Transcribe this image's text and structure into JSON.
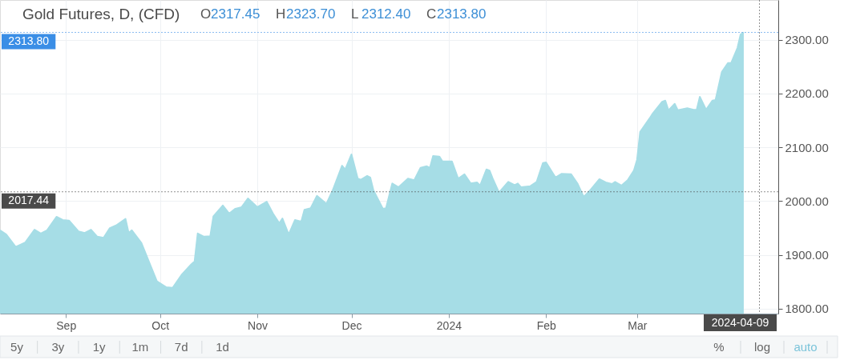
{
  "chart_data": {
    "type": "area",
    "title": "Gold Futures, D, (CFD)",
    "subtitle": "O2317.45 H2323.70 L2312.40 C2313.80",
    "x": [
      "2023-08-11",
      "2023-08-13",
      "2023-08-16",
      "2023-08-19",
      "2023-08-22",
      "2023-08-24",
      "2023-08-26",
      "2023-08-29",
      "2023-08-31",
      "2023-09-02",
      "2023-09-05",
      "2023-09-07",
      "2023-09-09",
      "2023-09-11",
      "2023-09-13",
      "2023-09-15",
      "2023-09-17",
      "2023-09-20",
      "2023-09-21",
      "2023-09-22",
      "2023-09-25",
      "2023-09-27",
      "2023-09-30",
      "2023-10-03",
      "2023-10-05",
      "2023-10-08",
      "2023-10-11",
      "2023-10-12",
      "2023-10-13",
      "2023-10-15",
      "2023-10-17",
      "2023-10-18",
      "2023-10-21",
      "2023-10-23",
      "2023-10-25",
      "2023-10-27",
      "2023-10-29",
      "2023-11-01",
      "2023-11-04",
      "2023-11-06",
      "2023-11-08",
      "2023-11-09",
      "2023-11-11",
      "2023-11-13",
      "2023-11-15",
      "2023-11-16",
      "2023-11-18",
      "2023-11-20",
      "2023-11-23",
      "2023-11-25",
      "2023-11-28",
      "2023-11-29",
      "2023-12-01",
      "2023-12-03",
      "2023-12-04",
      "2023-12-06",
      "2023-12-07",
      "2023-12-08",
      "2023-12-11",
      "2023-12-12",
      "2023-12-14",
      "2023-12-16",
      "2023-12-19",
      "2023-12-21",
      "2023-12-23",
      "2023-12-25",
      "2023-12-26",
      "2023-12-27",
      "2023-12-29",
      "2023-12-30",
      "2024-01-02",
      "2024-01-04",
      "2024-01-06",
      "2024-01-08",
      "2024-01-10",
      "2024-01-11",
      "2024-01-13",
      "2024-01-14",
      "2024-01-15",
      "2024-01-17",
      "2024-01-20",
      "2024-01-22",
      "2024-01-23",
      "2024-01-24",
      "2024-01-27",
      "2024-01-29",
      "2024-01-31",
      "2024-02-01",
      "2024-02-04",
      "2024-02-06",
      "2024-02-09",
      "2024-02-11",
      "2024-02-13",
      "2024-02-15",
      "2024-02-18",
      "2024-02-20",
      "2024-02-22",
      "2024-02-23",
      "2024-02-25",
      "2024-02-27",
      "2024-02-29",
      "2024-03-01",
      "2024-03-02",
      "2024-03-05",
      "2024-03-06",
      "2024-03-09",
      "2024-03-10",
      "2024-03-11",
      "2024-03-13",
      "2024-03-14",
      "2024-03-17",
      "2024-03-19",
      "2024-03-20",
      "2024-03-21",
      "2024-03-23",
      "2024-03-25",
      "2024-03-26",
      "2024-03-28",
      "2024-03-30",
      "2024-03-31",
      "2024-04-02",
      "2024-04-03",
      "2024-04-04"
    ],
    "series": [
      {
        "color": "#a6dde6",
        "values": [
          1946,
          1938,
          1915,
          1923,
          1947,
          1940,
          1946,
          1971,
          1965,
          1964,
          1944,
          1941,
          1947,
          1934,
          1932,
          1950,
          1955,
          1967,
          1941,
          1946,
          1923,
          1894,
          1851,
          1840,
          1839,
          1864,
          1883,
          1888,
          1940,
          1934,
          1935,
          1972,
          1992,
          1977,
          1986,
          1989,
          2005,
          1989,
          1999,
          1977,
          1959,
          1968,
          1938,
          1965,
          1962,
          1984,
          1987,
          2010,
          1995,
          2020,
          2066,
          2059,
          2087,
          2042,
          2040,
          2047,
          2044,
          2020,
          1986,
          1987,
          2033,
          2026,
          2042,
          2039,
          2062,
          2065,
          2062,
          2084,
          2083,
          2074,
          2074,
          2042,
          2050,
          2033,
          2035,
          2029,
          2059,
          2057,
          2042,
          2016,
          2036,
          2030,
          2033,
          2026,
          2028,
          2036,
          2071,
          2072,
          2044,
          2051,
          2050,
          2033,
          2008,
          2020,
          2041,
          2035,
          2032,
          2036,
          2029,
          2039,
          2057,
          2077,
          2129,
          2154,
          2163,
          2185,
          2187,
          2169,
          2181,
          2169,
          2173,
          2170,
          2170,
          2194,
          2170,
          2187,
          2188,
          2240,
          2257,
          2257,
          2285,
          2310,
          2313.8
        ]
      }
    ],
    "xlim": [
      "2023-08-11",
      "2024-04-15"
    ],
    "xticks": [
      {
        "value": "2023-09-01",
        "label": "Sep"
      },
      {
        "value": "2023-10-01",
        "label": "Oct"
      },
      {
        "value": "2023-11-01",
        "label": "Nov"
      },
      {
        "value": "2023-12-01",
        "label": "Dec"
      },
      {
        "value": "2024-01-01",
        "label": "2024"
      },
      {
        "value": "2024-02-01",
        "label": "Feb"
      },
      {
        "value": "2024-03-01",
        "label": "Mar"
      }
    ],
    "ylim": [
      1791,
      2374
    ],
    "yticks": [
      {
        "value": 1800,
        "label": "1800.00"
      },
      {
        "value": 1900,
        "label": "1900.00"
      },
      {
        "value": 2000,
        "label": "2000.00"
      },
      {
        "value": 2100,
        "label": "2100.00"
      },
      {
        "value": 2200,
        "label": "2200.00"
      },
      {
        "value": 2300,
        "label": "2300.00"
      }
    ],
    "grid": true,
    "ref_lines": [
      {
        "axis": "y",
        "value": 2313.8,
        "label": "2313.80",
        "color": "#3a8ee6",
        "line_style": "dotted"
      },
      {
        "axis": "y",
        "value": 2017.44,
        "label": "2017.44",
        "color": "#4a4a4a",
        "line_style": "dotted"
      },
      {
        "axis": "x",
        "value": "2024-04-09",
        "label": "2024-04-09",
        "color": "#4a4a4a",
        "line_style": "dotted"
      }
    ],
    "annotations": [
      "5y",
      "3y",
      "1y",
      "1m",
      "7d",
      "1d",
      "%",
      "log",
      "auto"
    ]
  }
}
